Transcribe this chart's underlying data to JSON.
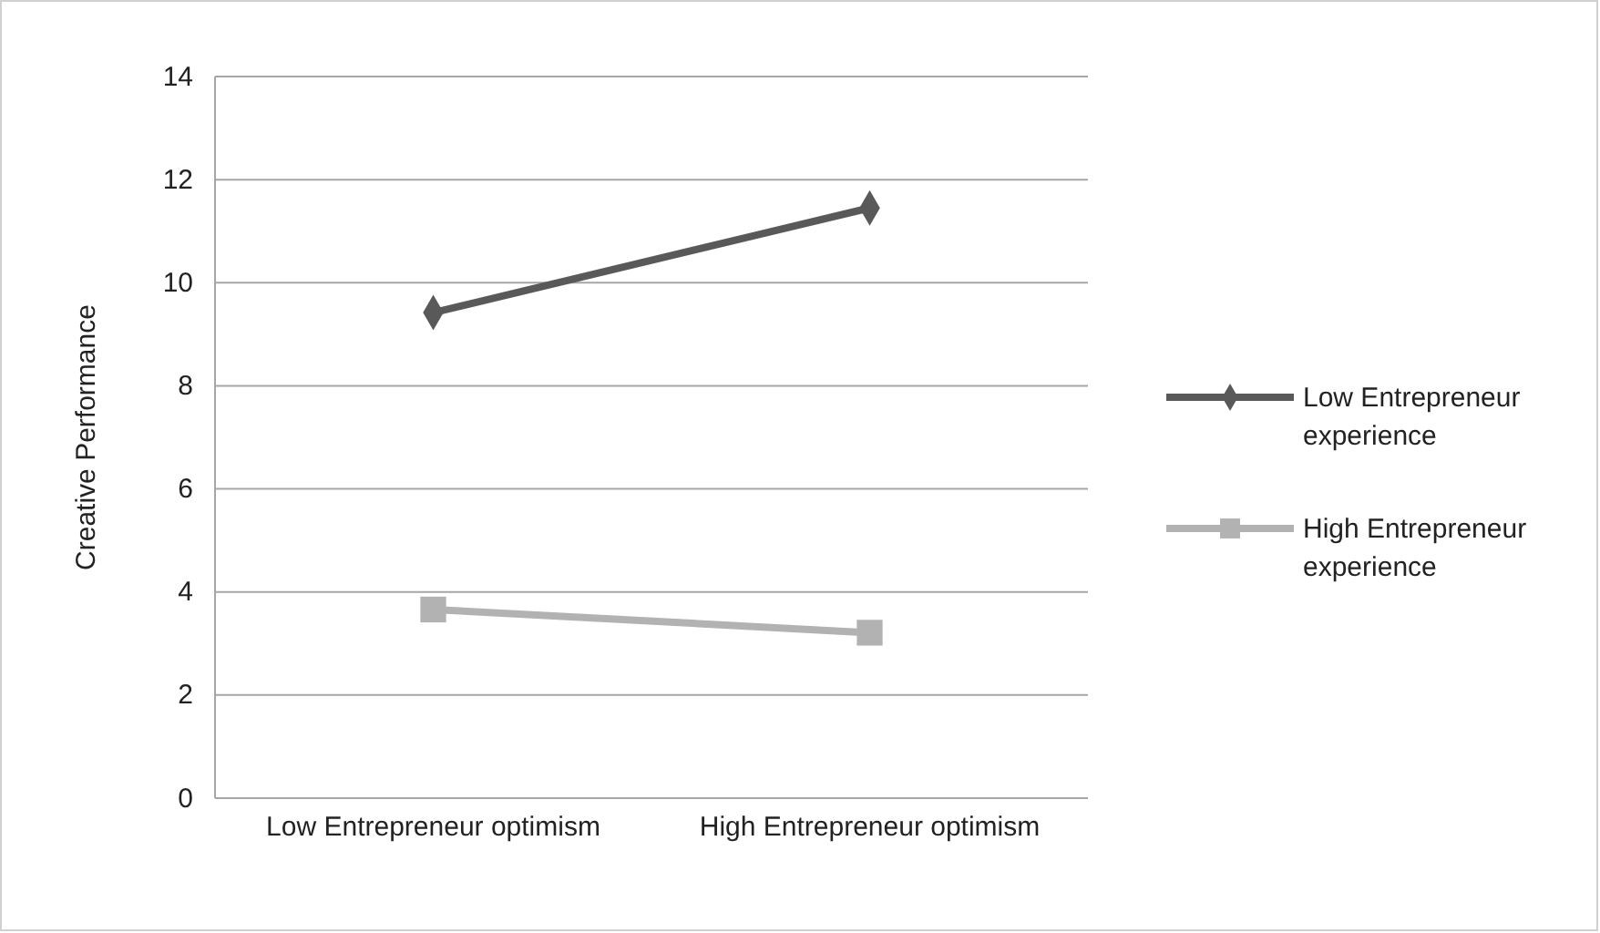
{
  "chart_data": {
    "type": "line",
    "ylabel": "Creative Performance",
    "categories": [
      "Low Entrepreneur optimism",
      "High Entrepreneur optimism"
    ],
    "series": [
      {
        "name": "Low Entrepreneur experience",
        "color": "#595959",
        "values": [
          9.42,
          11.45
        ],
        "marker": "diamond"
      },
      {
        "name": "High Entrepreneur experience",
        "color": "#b2b2b2",
        "values": [
          3.66,
          3.21
        ],
        "marker": "square"
      }
    ],
    "ylim": [
      0,
      14
    ],
    "yticks": [
      0,
      2,
      4,
      6,
      8,
      10,
      12,
      14
    ],
    "grid": "y",
    "legend": "right",
    "line_style": "solid"
  }
}
